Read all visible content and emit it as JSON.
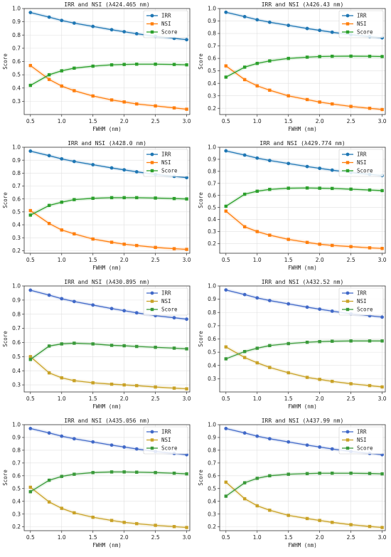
{
  "chart_data": [
    {
      "type": "line",
      "title": "IRR and NSI (λ424.465 nm)",
      "xlabel": "FWHM (nm)",
      "ylabel": "Score",
      "xlim": [
        0.4,
        3.05
      ],
      "ylim": [
        0.2,
        1.0
      ],
      "xticks": [
        0.5,
        1.0,
        1.5,
        2.0,
        2.5,
        3.0
      ],
      "xtick_labels": [
        "0.5",
        "1.0",
        "1.5",
        "2.0",
        "2.5",
        "3.0"
      ],
      "yticks": [
        0.3,
        0.4,
        0.5,
        0.6,
        0.7,
        0.8,
        0.9,
        1.0
      ],
      "ytick_labels": [
        "0.3",
        "0.4",
        "0.5",
        "0.6",
        "0.7",
        "0.8",
        "0.9",
        "1.0"
      ],
      "grid": true,
      "legend_position": "top-right",
      "x": [
        0.5,
        0.8,
        1.0,
        1.2,
        1.5,
        1.8,
        2.0,
        2.2,
        2.5,
        2.8,
        3.0
      ],
      "series": [
        {
          "name": "IRR",
          "color": "#1f77b4",
          "marker": "circle",
          "values": [
            0.97,
            0.935,
            0.91,
            0.89,
            0.865,
            0.84,
            0.825,
            0.81,
            0.79,
            0.775,
            0.765
          ]
        },
        {
          "name": "NSI",
          "color": "#ff7f0e",
          "marker": "square",
          "values": [
            0.57,
            0.465,
            0.415,
            0.38,
            0.34,
            0.31,
            0.295,
            0.28,
            0.265,
            0.25,
            0.24
          ]
        },
        {
          "name": "Score",
          "color": "#2ca02c",
          "marker": "square",
          "values": [
            0.42,
            0.5,
            0.53,
            0.55,
            0.565,
            0.575,
            0.578,
            0.58,
            0.58,
            0.578,
            0.575
          ]
        }
      ]
    },
    {
      "type": "line",
      "title": "IRR and NSI (λ426.43 nm)",
      "xlabel": "FWHM (nm)",
      "ylabel": "Score",
      "xlim": [
        0.4,
        3.05
      ],
      "ylim": [
        0.15,
        1.0
      ],
      "xticks": [
        0.5,
        1.0,
        1.5,
        2.0,
        2.5,
        3.0
      ],
      "xtick_labels": [
        "0.5",
        "1.0",
        "1.5",
        "2.0",
        "2.5",
        "3.0"
      ],
      "yticks": [
        0.2,
        0.3,
        0.4,
        0.5,
        0.6,
        0.7,
        0.8,
        0.9,
        1.0
      ],
      "ytick_labels": [
        "0.2",
        "0.3",
        "0.4",
        "0.5",
        "0.6",
        "0.7",
        "0.8",
        "0.9",
        "1.0"
      ],
      "grid": true,
      "legend_position": "top-right",
      "x": [
        0.5,
        0.8,
        1.0,
        1.2,
        1.5,
        1.8,
        2.0,
        2.2,
        2.5,
        2.8,
        3.0
      ],
      "series": [
        {
          "name": "IRR",
          "color": "#1f77b4",
          "marker": "circle",
          "values": [
            0.97,
            0.935,
            0.91,
            0.89,
            0.865,
            0.84,
            0.825,
            0.81,
            0.79,
            0.775,
            0.765
          ]
        },
        {
          "name": "NSI",
          "color": "#ff7f0e",
          "marker": "square",
          "values": [
            0.54,
            0.43,
            0.38,
            0.345,
            0.3,
            0.27,
            0.25,
            0.235,
            0.215,
            0.2,
            0.19
          ]
        },
        {
          "name": "Score",
          "color": "#2ca02c",
          "marker": "square",
          "values": [
            0.45,
            0.53,
            0.56,
            0.58,
            0.6,
            0.61,
            0.615,
            0.617,
            0.618,
            0.617,
            0.615
          ]
        }
      ]
    },
    {
      "type": "line",
      "title": "IRR and NSI (λ428.0 nm)",
      "xlabel": "FWHM (nm)",
      "ylabel": "Score",
      "xlim": [
        0.4,
        3.05
      ],
      "ylim": [
        0.18,
        1.0
      ],
      "xticks": [
        0.5,
        1.0,
        1.5,
        2.0,
        2.5,
        3.0
      ],
      "xtick_labels": [
        "0.5",
        "1.0",
        "1.5",
        "2.0",
        "2.5",
        "3.0"
      ],
      "yticks": [
        0.2,
        0.3,
        0.4,
        0.5,
        0.6,
        0.7,
        0.8,
        0.9,
        1.0
      ],
      "ytick_labels": [
        "0.2",
        "0.3",
        "0.4",
        "0.5",
        "0.6",
        "0.7",
        "0.8",
        "0.9",
        "1.0"
      ],
      "grid": true,
      "legend_position": "top-right",
      "x": [
        0.5,
        0.8,
        1.0,
        1.2,
        1.5,
        1.8,
        2.0,
        2.2,
        2.5,
        2.8,
        3.0
      ],
      "series": [
        {
          "name": "IRR",
          "color": "#1f77b4",
          "marker": "circle",
          "values": [
            0.97,
            0.935,
            0.91,
            0.89,
            0.865,
            0.84,
            0.825,
            0.81,
            0.79,
            0.775,
            0.765
          ]
        },
        {
          "name": "NSI",
          "color": "#ff7f0e",
          "marker": "square",
          "values": [
            0.51,
            0.41,
            0.36,
            0.33,
            0.29,
            0.265,
            0.25,
            0.24,
            0.225,
            0.215,
            0.21
          ]
        },
        {
          "name": "Score",
          "color": "#2ca02c",
          "marker": "square",
          "values": [
            0.475,
            0.55,
            0.575,
            0.595,
            0.605,
            0.61,
            0.61,
            0.61,
            0.607,
            0.603,
            0.6
          ]
        }
      ]
    },
    {
      "type": "line",
      "title": "IRR and NSI (λ429.774 nm)",
      "xlabel": "FWHM (nm)",
      "ylabel": "Score",
      "xlim": [
        0.4,
        3.05
      ],
      "ylim": [
        0.12,
        1.0
      ],
      "xticks": [
        0.5,
        1.0,
        1.5,
        2.0,
        2.5,
        3.0
      ],
      "xtick_labels": [
        "0.5",
        "1.0",
        "1.5",
        "2.0",
        "2.5",
        "3.0"
      ],
      "yticks": [
        0.2,
        0.3,
        0.4,
        0.5,
        0.6,
        0.7,
        0.8,
        0.9,
        1.0
      ],
      "ytick_labels": [
        "0.2",
        "0.3",
        "0.4",
        "0.5",
        "0.6",
        "0.7",
        "0.8",
        "0.9",
        "1.0"
      ],
      "grid": true,
      "legend_position": "top-right",
      "x": [
        0.5,
        0.8,
        1.0,
        1.2,
        1.5,
        1.8,
        2.0,
        2.2,
        2.5,
        2.8,
        3.0
      ],
      "series": [
        {
          "name": "IRR",
          "color": "#1f77b4",
          "marker": "circle",
          "values": [
            0.97,
            0.935,
            0.91,
            0.89,
            0.865,
            0.84,
            0.825,
            0.81,
            0.79,
            0.775,
            0.765
          ]
        },
        {
          "name": "NSI",
          "color": "#ff7f0e",
          "marker": "square",
          "values": [
            0.47,
            0.34,
            0.3,
            0.27,
            0.235,
            0.21,
            0.195,
            0.185,
            0.175,
            0.165,
            0.16
          ]
        },
        {
          "name": "Score",
          "color": "#2ca02c",
          "marker": "square",
          "values": [
            0.51,
            0.61,
            0.635,
            0.65,
            0.66,
            0.662,
            0.66,
            0.658,
            0.652,
            0.645,
            0.64
          ]
        }
      ]
    },
    {
      "type": "line",
      "title": "IRR and NSI (λ430.895 nm)",
      "xlabel": "FWHM (nm)",
      "ylabel": "Score",
      "xlim": [
        0.4,
        3.05
      ],
      "ylim": [
        0.25,
        1.0
      ],
      "xticks": [
        0.5,
        1.0,
        1.5,
        2.0,
        2.5,
        3.0
      ],
      "xtick_labels": [
        "0.5",
        "1.0",
        "1.5",
        "2.0",
        "2.5",
        "3.0"
      ],
      "yticks": [
        0.3,
        0.4,
        0.5,
        0.6,
        0.7,
        0.8,
        0.9,
        1.0
      ],
      "ytick_labels": [
        "0.3",
        "0.4",
        "0.5",
        "0.6",
        "0.7",
        "0.8",
        "0.9",
        "1.0"
      ],
      "grid": true,
      "legend_position": "top-right",
      "x": [
        0.5,
        0.8,
        1.0,
        1.2,
        1.5,
        1.8,
        2.0,
        2.2,
        2.5,
        2.8,
        3.0
      ],
      "series": [
        {
          "name": "IRR",
          "color": "#4169c8",
          "marker": "circle",
          "values": [
            0.97,
            0.935,
            0.91,
            0.89,
            0.865,
            0.84,
            0.825,
            0.81,
            0.79,
            0.775,
            0.765
          ]
        },
        {
          "name": "NSI",
          "color": "#c9a227",
          "marker": "square",
          "values": [
            0.5,
            0.385,
            0.35,
            0.33,
            0.315,
            0.305,
            0.3,
            0.295,
            0.285,
            0.277,
            0.272
          ]
        },
        {
          "name": "Score",
          "color": "#3a9a3a",
          "marker": "square",
          "values": [
            0.48,
            0.575,
            0.59,
            0.595,
            0.59,
            0.58,
            0.577,
            0.572,
            0.566,
            0.56,
            0.555
          ]
        }
      ]
    },
    {
      "type": "line",
      "title": "IRR and NSI (λ432.52 nm)",
      "xlabel": "FWHM (nm)",
      "ylabel": "Score",
      "xlim": [
        0.4,
        3.05
      ],
      "ylim": [
        0.2,
        1.0
      ],
      "xticks": [
        0.5,
        1.0,
        1.5,
        2.0,
        2.5,
        3.0
      ],
      "xtick_labels": [
        "0.5",
        "1.0",
        "1.5",
        "2.0",
        "2.5",
        "3.0"
      ],
      "yticks": [
        0.3,
        0.4,
        0.5,
        0.6,
        0.7,
        0.8,
        0.9,
        1.0
      ],
      "ytick_labels": [
        "0.3",
        "0.4",
        "0.5",
        "0.6",
        "0.7",
        "0.8",
        "0.9",
        "1.0"
      ],
      "grid": true,
      "legend_position": "top-right",
      "x": [
        0.5,
        0.8,
        1.0,
        1.2,
        1.5,
        1.8,
        2.0,
        2.2,
        2.5,
        2.8,
        3.0
      ],
      "series": [
        {
          "name": "IRR",
          "color": "#4169c8",
          "marker": "circle",
          "values": [
            0.97,
            0.935,
            0.91,
            0.89,
            0.865,
            0.84,
            0.825,
            0.81,
            0.79,
            0.775,
            0.765
          ]
        },
        {
          "name": "NSI",
          "color": "#c9a227",
          "marker": "square",
          "values": [
            0.54,
            0.46,
            0.42,
            0.385,
            0.345,
            0.31,
            0.295,
            0.28,
            0.262,
            0.248,
            0.238
          ]
        },
        {
          "name": "Score",
          "color": "#3a9a3a",
          "marker": "square",
          "values": [
            0.45,
            0.505,
            0.53,
            0.55,
            0.565,
            0.575,
            0.58,
            0.583,
            0.585,
            0.585,
            0.585
          ]
        }
      ]
    },
    {
      "type": "line",
      "title": "IRR and NSI (λ435.056 nm)",
      "xlabel": "FWHM (nm)",
      "ylabel": "Score",
      "xlim": [
        0.4,
        3.05
      ],
      "ylim": [
        0.17,
        1.0
      ],
      "xticks": [
        0.5,
        1.0,
        1.5,
        2.0,
        2.5,
        3.0
      ],
      "xtick_labels": [
        "0.5",
        "1.0",
        "1.5",
        "2.0",
        "2.5",
        "3.0"
      ],
      "yticks": [
        0.2,
        0.3,
        0.4,
        0.5,
        0.6,
        0.7,
        0.8,
        0.9,
        1.0
      ],
      "ytick_labels": [
        "0.2",
        "0.3",
        "0.4",
        "0.5",
        "0.6",
        "0.7",
        "0.8",
        "0.9",
        "1.0"
      ],
      "grid": true,
      "legend_position": "top-right",
      "x": [
        0.5,
        0.8,
        1.0,
        1.2,
        1.5,
        1.8,
        2.0,
        2.2,
        2.5,
        2.8,
        3.0
      ],
      "series": [
        {
          "name": "IRR",
          "color": "#4169c8",
          "marker": "circle",
          "values": [
            0.97,
            0.935,
            0.91,
            0.89,
            0.865,
            0.84,
            0.825,
            0.81,
            0.79,
            0.775,
            0.765
          ]
        },
        {
          "name": "NSI",
          "color": "#c9a227",
          "marker": "square",
          "values": [
            0.51,
            0.395,
            0.345,
            0.31,
            0.275,
            0.25,
            0.235,
            0.225,
            0.212,
            0.202,
            0.195
          ]
        },
        {
          "name": "Score",
          "color": "#3a9a3a",
          "marker": "square",
          "values": [
            0.475,
            0.565,
            0.595,
            0.612,
            0.625,
            0.63,
            0.63,
            0.628,
            0.625,
            0.62,
            0.615
          ]
        }
      ]
    },
    {
      "type": "line",
      "title": "IRR and NSI (λ437.99 nm)",
      "xlabel": "FWHM (nm)",
      "ylabel": "Score",
      "xlim": [
        0.4,
        3.05
      ],
      "ylim": [
        0.17,
        1.0
      ],
      "xticks": [
        0.5,
        1.0,
        1.5,
        2.0,
        2.5,
        3.0
      ],
      "xtick_labels": [
        "0.5",
        "1.0",
        "1.5",
        "2.0",
        "2.5",
        "3.0"
      ],
      "yticks": [
        0.2,
        0.3,
        0.4,
        0.5,
        0.6,
        0.7,
        0.8,
        0.9,
        1.0
      ],
      "ytick_labels": [
        "0.2",
        "0.3",
        "0.4",
        "0.5",
        "0.6",
        "0.7",
        "0.8",
        "0.9",
        "1.0"
      ],
      "grid": true,
      "legend_position": "top-right",
      "x": [
        0.5,
        0.8,
        1.0,
        1.2,
        1.5,
        1.8,
        2.0,
        2.2,
        2.5,
        2.8,
        3.0
      ],
      "series": [
        {
          "name": "IRR",
          "color": "#4169c8",
          "marker": "circle",
          "values": [
            0.97,
            0.935,
            0.91,
            0.89,
            0.865,
            0.84,
            0.825,
            0.81,
            0.79,
            0.775,
            0.765
          ]
        },
        {
          "name": "NSI",
          "color": "#c9a227",
          "marker": "square",
          "values": [
            0.55,
            0.42,
            0.365,
            0.33,
            0.29,
            0.265,
            0.25,
            0.235,
            0.217,
            0.203,
            0.195
          ]
        },
        {
          "name": "Score",
          "color": "#3a9a3a",
          "marker": "square",
          "values": [
            0.44,
            0.545,
            0.58,
            0.6,
            0.612,
            0.617,
            0.62,
            0.62,
            0.62,
            0.618,
            0.615
          ]
        }
      ]
    }
  ]
}
